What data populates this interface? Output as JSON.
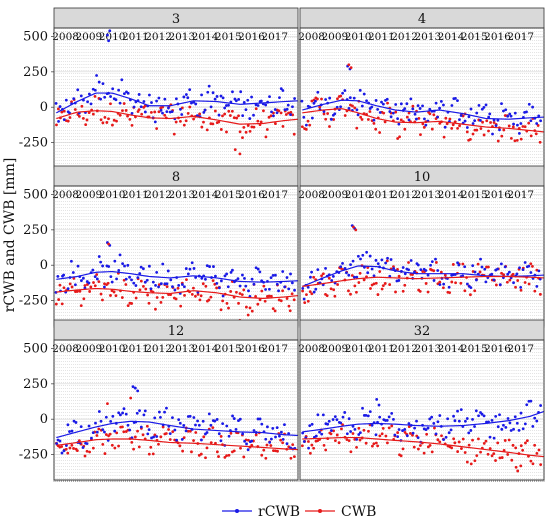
{
  "figure": {
    "ylabel": "rCWB and CWB [mm]",
    "legend": [
      {
        "name": "rCWB",
        "color": "#1a1ae6"
      },
      {
        "name": "CWB",
        "color": "#e61a1a"
      }
    ],
    "legend_position": "bottom-center"
  },
  "chart_data": {
    "type": "scatter",
    "facet_titles": [
      "3",
      "4",
      "8",
      "10",
      "12",
      "32"
    ],
    "year_labels": [
      "2008",
      "2009",
      "2010",
      "2011",
      "2012",
      "2013",
      "2014",
      "2015",
      "2016",
      "2017"
    ],
    "y_ticks": [
      500,
      250,
      0,
      -250
    ],
    "ylim": [
      -430,
      560
    ],
    "xlim": [
      2007.5,
      2018.0
    ],
    "grid": true,
    "panels": [
      {
        "title": "3",
        "rCWB_smooth": [
          [
            2007.6,
            -40
          ],
          [
            2008.5,
            40
          ],
          [
            2009.3,
            100
          ],
          [
            2010.0,
            100
          ],
          [
            2010.8,
            60
          ],
          [
            2011.6,
            10
          ],
          [
            2012.5,
            10
          ],
          [
            2013.5,
            45
          ],
          [
            2014.5,
            40
          ],
          [
            2015.5,
            20
          ],
          [
            2016.5,
            30
          ],
          [
            2017.4,
            40
          ],
          [
            2018.0,
            45
          ]
        ],
        "CWB_smooth": [
          [
            2007.6,
            -80
          ],
          [
            2008.5,
            -35
          ],
          [
            2009.3,
            -25
          ],
          [
            2010.0,
            -30
          ],
          [
            2010.8,
            -55
          ],
          [
            2011.6,
            -75
          ],
          [
            2012.5,
            -80
          ],
          [
            2013.5,
            -65
          ],
          [
            2014.5,
            -90
          ],
          [
            2015.5,
            -120
          ],
          [
            2016.5,
            -115
          ],
          [
            2017.4,
            -95
          ],
          [
            2018.0,
            -85
          ]
        ],
        "rCWB_outliers": [
          [
            2009.8,
            510
          ],
          [
            2009.85,
            470
          ],
          [
            2009.9,
            540
          ]
        ],
        "CWB_outliers": [
          [
            2015.3,
            -300
          ],
          [
            2015.5,
            -330
          ]
        ]
      },
      {
        "title": "4",
        "rCWB_smooth": [
          [
            2007.6,
            -20
          ],
          [
            2008.5,
            20
          ],
          [
            2009.3,
            50
          ],
          [
            2010.0,
            45
          ],
          [
            2010.8,
            10
          ],
          [
            2011.6,
            -20
          ],
          [
            2012.5,
            -35
          ],
          [
            2013.5,
            -20
          ],
          [
            2014.5,
            -45
          ],
          [
            2015.5,
            -80
          ],
          [
            2016.5,
            -85
          ],
          [
            2017.4,
            -75
          ],
          [
            2018.0,
            -70
          ]
        ],
        "CWB_smooth": [
          [
            2007.6,
            -40
          ],
          [
            2008.5,
            -20
          ],
          [
            2009.3,
            -10
          ],
          [
            2010.0,
            -40
          ],
          [
            2010.8,
            -80
          ],
          [
            2011.6,
            -105
          ],
          [
            2012.5,
            -110
          ],
          [
            2013.5,
            -100
          ],
          [
            2014.5,
            -120
          ],
          [
            2015.5,
            -140
          ],
          [
            2016.5,
            -150
          ],
          [
            2017.4,
            -165
          ],
          [
            2018.0,
            -175
          ]
        ],
        "rCWB_outliers": [
          [
            2009.55,
            290
          ],
          [
            2009.65,
            270
          ]
        ],
        "CWB_outliers": [
          [
            2009.6,
            300
          ],
          [
            2009.7,
            280
          ]
        ]
      },
      {
        "title": "8",
        "rCWB_smooth": [
          [
            2007.6,
            -100
          ],
          [
            2008.5,
            -80
          ],
          [
            2009.3,
            -50
          ],
          [
            2010.0,
            -45
          ],
          [
            2010.8,
            -60
          ],
          [
            2011.6,
            -80
          ],
          [
            2012.5,
            -90
          ],
          [
            2013.5,
            -75
          ],
          [
            2014.5,
            -90
          ],
          [
            2015.5,
            -115
          ],
          [
            2016.5,
            -120
          ],
          [
            2017.4,
            -115
          ],
          [
            2018.0,
            -110
          ]
        ],
        "CWB_smooth": [
          [
            2007.6,
            -190
          ],
          [
            2008.5,
            -175
          ],
          [
            2009.3,
            -165
          ],
          [
            2010.0,
            -170
          ],
          [
            2010.8,
            -185
          ],
          [
            2011.6,
            -195
          ],
          [
            2012.5,
            -200
          ],
          [
            2013.5,
            -180
          ],
          [
            2014.5,
            -195
          ],
          [
            2015.5,
            -225
          ],
          [
            2016.5,
            -235
          ],
          [
            2017.4,
            -225
          ],
          [
            2018.0,
            -215
          ]
        ],
        "rCWB_outliers": [
          [
            2009.8,
            160
          ],
          [
            2009.9,
            140
          ]
        ],
        "CWB_outliers": [
          [
            2009.85,
            150
          ],
          [
            2015.5,
            -390
          ]
        ]
      },
      {
        "title": "10",
        "rCWB_smooth": [
          [
            2007.6,
            -150
          ],
          [
            2008.5,
            -90
          ],
          [
            2009.3,
            -40
          ],
          [
            2010.0,
            -5
          ],
          [
            2010.8,
            -10
          ],
          [
            2011.6,
            -40
          ],
          [
            2012.5,
            -60
          ],
          [
            2013.5,
            -60
          ],
          [
            2014.5,
            -60
          ],
          [
            2015.5,
            -75
          ],
          [
            2016.5,
            -80
          ],
          [
            2017.4,
            -75
          ],
          [
            2018.0,
            -70
          ]
        ],
        "CWB_smooth": [
          [
            2007.6,
            -150
          ],
          [
            2008.5,
            -130
          ],
          [
            2009.3,
            -110
          ],
          [
            2010.0,
            -95
          ],
          [
            2010.8,
            -85
          ],
          [
            2011.6,
            -90
          ],
          [
            2012.5,
            -95
          ],
          [
            2013.5,
            -90
          ],
          [
            2014.5,
            -85
          ],
          [
            2015.5,
            -80
          ],
          [
            2016.5,
            -80
          ],
          [
            2017.4,
            -85
          ],
          [
            2018.0,
            -90
          ]
        ],
        "rCWB_outliers": [
          [
            2009.75,
            280
          ],
          [
            2009.85,
            260
          ]
        ],
        "CWB_outliers": [
          [
            2009.8,
            270
          ],
          [
            2009.9,
            250
          ]
        ]
      },
      {
        "title": "12",
        "rCWB_smooth": [
          [
            2007.6,
            -130
          ],
          [
            2008.5,
            -90
          ],
          [
            2009.3,
            -55
          ],
          [
            2010.0,
            -30
          ],
          [
            2010.8,
            -15
          ],
          [
            2011.6,
            -20
          ],
          [
            2012.5,
            -45
          ],
          [
            2013.5,
            -70
          ],
          [
            2014.5,
            -80
          ],
          [
            2015.5,
            -90
          ],
          [
            2016.5,
            -95
          ],
          [
            2017.4,
            -110
          ],
          [
            2018.0,
            -115
          ]
        ],
        "CWB_smooth": [
          [
            2007.6,
            -185
          ],
          [
            2008.5,
            -165
          ],
          [
            2009.3,
            -145
          ],
          [
            2010.0,
            -140
          ],
          [
            2010.8,
            -140
          ],
          [
            2011.6,
            -150
          ],
          [
            2012.5,
            -165
          ],
          [
            2013.5,
            -170
          ],
          [
            2014.5,
            -180
          ],
          [
            2015.5,
            -190
          ],
          [
            2016.5,
            -200
          ],
          [
            2017.4,
            -210
          ],
          [
            2018.0,
            -215
          ]
        ],
        "rCWB_outliers": [
          [
            2010.9,
            230
          ],
          [
            2011.0,
            220
          ],
          [
            2011.1,
            200
          ]
        ],
        "CWB_outliers": [
          [
            2009.8,
            110
          ],
          [
            2010.8,
            150
          ]
        ]
      },
      {
        "title": "32",
        "rCWB_smooth": [
          [
            2007.6,
            -90
          ],
          [
            2008.5,
            -70
          ],
          [
            2009.3,
            -50
          ],
          [
            2010.0,
            -35
          ],
          [
            2010.8,
            -30
          ],
          [
            2011.6,
            -35
          ],
          [
            2012.5,
            -45
          ],
          [
            2013.5,
            -50
          ],
          [
            2014.5,
            -45
          ],
          [
            2015.5,
            -30
          ],
          [
            2016.5,
            -10
          ],
          [
            2017.4,
            20
          ],
          [
            2018.0,
            55
          ]
        ],
        "CWB_smooth": [
          [
            2007.6,
            -140
          ],
          [
            2008.5,
            -135
          ],
          [
            2009.3,
            -130
          ],
          [
            2010.0,
            -130
          ],
          [
            2010.8,
            -140
          ],
          [
            2011.6,
            -150
          ],
          [
            2012.5,
            -160
          ],
          [
            2013.5,
            -175
          ],
          [
            2014.5,
            -195
          ],
          [
            2015.5,
            -215
          ],
          [
            2016.5,
            -235
          ],
          [
            2017.4,
            -255
          ],
          [
            2018.0,
            -265
          ]
        ],
        "rCWB_outliers": [
          [
            2010.8,
            140
          ],
          [
            2010.9,
            100
          ]
        ],
        "CWB_outliers": [
          [
            2016.8,
            -340
          ],
          [
            2017.0,
            -330
          ]
        ]
      }
    ]
  }
}
